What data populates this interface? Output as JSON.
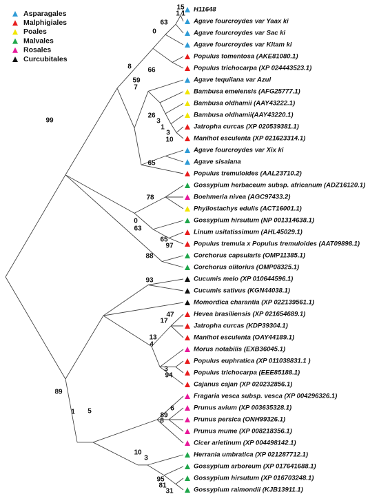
{
  "legend": [
    {
      "label": "Asparagales",
      "color": "#2e9bd6"
    },
    {
      "label": "Malphigiales",
      "color": "#e81c1c"
    },
    {
      "label": "Poales",
      "color": "#f2e600"
    },
    {
      "label": "Malvales",
      "color": "#1fa64a"
    },
    {
      "label": "Rosales",
      "color": "#e8189a"
    },
    {
      "label": "Curcubitales",
      "color": "#111111"
    }
  ],
  "leaves": [
    {
      "label": "H11648",
      "color": "#2e9bd6"
    },
    {
      "label": "Agave fourcroydes var Yaax ki",
      "color": "#2e9bd6"
    },
    {
      "label": "Agave fourcroydes var Sac ki",
      "color": "#2e9bd6"
    },
    {
      "label": "Agave fourcroydes var Kitam ki",
      "color": "#2e9bd6"
    },
    {
      "label": "Populus tomentosa (AKE81080.1)",
      "color": "#e81c1c"
    },
    {
      "label": "Populus trichocarpa (XP 024443523.1)",
      "color": "#e81c1c"
    },
    {
      "label": "Agave tequilana var Azul",
      "color": "#2e9bd6"
    },
    {
      "label": "Bambusa emeiensis (AFG25777.1)",
      "color": "#f2e600"
    },
    {
      "label": "Bambusa oldhamii (AAY43222.1)",
      "color": "#f2e600"
    },
    {
      "label": "Bambusa oldhamii(AAY43220.1)",
      "color": "#f2e600"
    },
    {
      "label": "Jatropha curcas (XP 020539381.1)",
      "color": "#e81c1c"
    },
    {
      "label": "Manihot esculenta (XP 021623314.1)",
      "color": "#e81c1c"
    },
    {
      "label": "Agave fourcroydes var Xix ki",
      "color": "#2e9bd6"
    },
    {
      "label": "Agave sisalana",
      "color": "#2e9bd6"
    },
    {
      "label": "Populus tremuloides (AAL23710.2)",
      "color": "#e81c1c"
    },
    {
      "label": "Gossypium herbaceum subsp. africanum (ADZ16120.1)",
      "color": "#1fa64a"
    },
    {
      "label": "Boehmeria nivea (AGC97433.2)",
      "color": "#e8189a"
    },
    {
      "label": "Phyllostachys edulis (ACT16001.1)",
      "color": "#f2e600"
    },
    {
      "label": "Gossypium hirsutum (NP 001314638.1)",
      "color": "#1fa64a"
    },
    {
      "label": "Linum usitatissimum (AHL45029.1)",
      "color": "#e81c1c"
    },
    {
      "label": "Populus tremula x Populus tremuloides (AAT09898.1)",
      "color": "#e81c1c"
    },
    {
      "label": "Corchorus capsularis (OMP11385.1)",
      "color": "#1fa64a"
    },
    {
      "label": "Corchorus olitorius (OMP08325.1)",
      "color": "#1fa64a"
    },
    {
      "label": "Cucumis melo (XP 010644596.1)",
      "color": "#111111"
    },
    {
      "label": "Cucumis sativus (KGN44038.1)",
      "color": "#111111"
    },
    {
      "label": "Momordica charantia (XP 022139561.1)",
      "color": "#111111"
    },
    {
      "label": "Hevea brasiliensis (XP 021654689.1)",
      "color": "#e81c1c"
    },
    {
      "label": "Jatropha curcas (KDP39304.1)",
      "color": "#e81c1c"
    },
    {
      "label": "Manihot esculenta (OAY44189.1)",
      "color": "#e81c1c"
    },
    {
      "label": "Morus notabilis (EXB36045.1)",
      "color": "#e8189a"
    },
    {
      "label": "Populus euphratica (XP 011038831.1 )",
      "color": "#e81c1c"
    },
    {
      "label": "Populus trichocarpa (EEE85188.1)",
      "color": "#e81c1c"
    },
    {
      "label": "Cajanus cajan (XP 020232856.1)",
      "color": "#e81c1c"
    },
    {
      "label": "Fragaria vesca subsp. vesca (XP 004296326.1)",
      "color": "#e8189a"
    },
    {
      "label": "Prunus avium (XP 003635328.1)",
      "color": "#e8189a"
    },
    {
      "label": "Prunus persica (ONH99326.1)",
      "color": "#e8189a"
    },
    {
      "label": "Prunus mume (XP 008218356.1)",
      "color": "#e8189a"
    },
    {
      "label": "Cicer arietinum (XP 004498142.1)",
      "color": "#e8189a"
    },
    {
      "label": "Herrania umbratica (XP 021287712.1)",
      "color": "#1fa64a"
    },
    {
      "label": "Gossypium arboreum (XP 017641688.1)",
      "color": "#1fa64a"
    },
    {
      "label": "Gossypium hirsutum (XP 016703248.1)",
      "color": "#1fa64a"
    },
    {
      "label": "Gossypium raimondii (KJB13911.1)",
      "color": "#1fa64a"
    }
  ],
  "support": [
    15,
    1,
    1,
    63,
    0,
    66,
    8,
    59,
    7,
    26,
    3,
    1,
    3,
    10,
    65,
    99,
    78,
    0,
    63,
    65,
    97,
    88,
    93,
    47,
    17,
    13,
    4,
    3,
    94,
    89,
    1,
    5,
    6,
    89,
    8,
    10,
    3,
    95,
    81,
    31
  ]
}
